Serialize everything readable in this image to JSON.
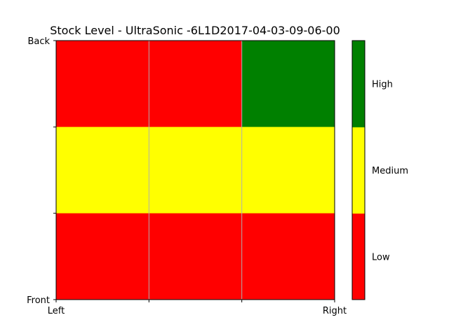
{
  "chart_data": {
    "type": "heatmap",
    "title": "Stock Level - UltraSonic -6L1D2017-04-03-09-06-00",
    "x_tick_labels": [
      "Left",
      "",
      "",
      "Right"
    ],
    "y_tick_labels": [
      "Front",
      "",
      "",
      "Back"
    ],
    "grid": "vertical",
    "rows": [
      {
        "position": "Back",
        "cells": [
          "Low",
          "Low",
          "High"
        ]
      },
      {
        "position": "Middle",
        "cells": [
          "Medium",
          "Medium",
          "Medium"
        ]
      },
      {
        "position": "Front",
        "cells": [
          "Low",
          "Low",
          "Low"
        ]
      }
    ],
    "levels": [
      {
        "label": "Low",
        "color": "#ff0000"
      },
      {
        "label": "Medium",
        "color": "#ffff00"
      },
      {
        "label": "High",
        "color": "#008000"
      }
    ],
    "colorbar_placement": "right"
  }
}
